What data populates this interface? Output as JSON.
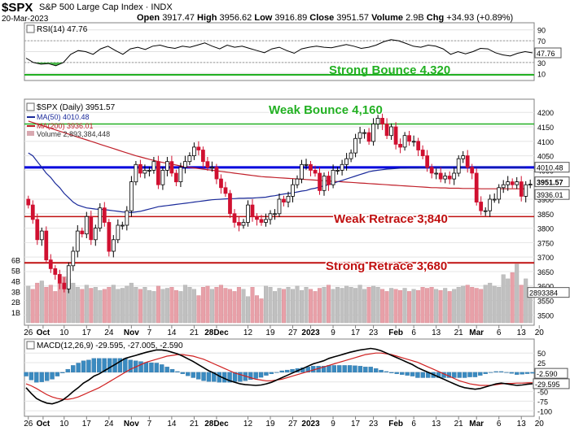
{
  "header": {
    "symbol": "$SPX",
    "name": "S&P 500 Large Cap Index",
    "exchange": "INDX",
    "date": "20-Mar-2023",
    "open_label": "Open",
    "open": "3917.47",
    "high_label": "High",
    "high": "3956.62",
    "low_label": "Low",
    "low": "3916.89",
    "close_label": "Close",
    "close": "3951.57",
    "volume_label": "Volume",
    "volume": "2.9B",
    "chg_label": "Chg",
    "chg": "+34.93 (+0.89%)"
  },
  "colors": {
    "up": "#000000",
    "down": "#d01030",
    "ma50": "#1a2a9a",
    "ma200": "#c0202a",
    "rsi": "#000000",
    "rsi_fill": "#22aa22",
    "vol_up": "#c0c0c0",
    "vol_down": "#e8a0a8",
    "hist": "#3a8ac0",
    "macd": "#000000",
    "signal": "#d02020",
    "green_line": "#22b022",
    "blue_line": "#0000dd",
    "red_line": "#c01010"
  },
  "chart_data": [
    {
      "type": "line",
      "panel": "RSI",
      "legend": "RSI(14) 47.76",
      "ylim": [
        0,
        100
      ],
      "ticks": [
        "90",
        "70",
        "50",
        "30",
        "10"
      ],
      "tick_values": [
        90,
        70,
        50,
        30,
        10
      ],
      "last_value": "47.76",
      "annotation": "Strong Bounce 4,320",
      "values": [
        38,
        30,
        27,
        28,
        24,
        30,
        45,
        52,
        50,
        45,
        55,
        60,
        52,
        45,
        55,
        58,
        54,
        60,
        62,
        58,
        56,
        60,
        58,
        62,
        66,
        60,
        55,
        62,
        58,
        60,
        56,
        52,
        48,
        55,
        58,
        52,
        47,
        55,
        58,
        60,
        58,
        57,
        60,
        63,
        60,
        56,
        58,
        62,
        68,
        72,
        70,
        65,
        60,
        58,
        62,
        60,
        55,
        45,
        50,
        46,
        50,
        56,
        55,
        48,
        44,
        42,
        47,
        50,
        47.76
      ]
    },
    {
      "type": "candlestick",
      "panel": "Price",
      "legend": [
        "$SPX (Daily) 3951.57",
        "MA(50) 4010.48",
        "MA(200) 3936.01",
        "Volume 2,893,384,448"
      ],
      "ylim": [
        3470,
        4240
      ],
      "ticks": [
        "4200",
        "4150",
        "4100",
        "4050",
        "4000",
        "3900",
        "3850",
        "3800",
        "3750",
        "3700",
        "3650",
        "3600",
        "3550",
        "3500"
      ],
      "tick_values": [
        4200,
        4150,
        4100,
        4050,
        4000,
        3900,
        3850,
        3800,
        3750,
        3700,
        3650,
        3600,
        3550,
        3500
      ],
      "last_labels": [
        "4010.48",
        "3951.57",
        "3936.01",
        "2893384"
      ],
      "vol_axis_labels": [
        "6B",
        "5B",
        "4B",
        "3B",
        "2B",
        "1B"
      ],
      "vol_axis_values": [
        6,
        5,
        4,
        3,
        2,
        1
      ],
      "x_labels": [
        "26",
        "Oct",
        "10",
        "17",
        "24",
        "Nov",
        "7",
        "14",
        "21",
        "28Dec",
        "12",
        "19",
        "27",
        "2023",
        "9",
        "17",
        "23",
        "Feb",
        "6",
        "13",
        "21",
        "Mar",
        "6",
        "13",
        "20"
      ],
      "x_label_idx": [
        0,
        3.3,
        8,
        13,
        18,
        23,
        27,
        32,
        37,
        42,
        49,
        54,
        59,
        63,
        68,
        73,
        77,
        82,
        86,
        91,
        96,
        100,
        105,
        110,
        114
      ],
      "lines": [
        {
          "label": "Strong Bounce 4,320",
          "value": 4320,
          "panel": "RSI"
        },
        {
          "label": "Weak Bounce 4,160",
          "value": 4160
        },
        {
          "label": "",
          "value": 4010
        },
        {
          "label": "Weak Retrace 3,840",
          "value": 3840
        },
        {
          "label": "Strong Retrace 3,680",
          "value": 3680
        }
      ],
      "close": [
        3880,
        3830,
        3760,
        3790,
        3690,
        3660,
        3640,
        3610,
        3590,
        3670,
        3720,
        3790,
        3780,
        3840,
        3760,
        3800,
        3870,
        3820,
        3720,
        3760,
        3810,
        3810,
        3860,
        3960,
        4020,
        3990,
        4000,
        4000,
        4030,
        3950,
        4000,
        4030,
        3990,
        3960,
        4010,
        4030,
        4050,
        4080,
        4070,
        4030,
        4010,
        4010,
        3970,
        3940,
        3920,
        3850,
        3820,
        3810,
        3820,
        3880,
        3840,
        3830,
        3820,
        3830,
        3850,
        3850,
        3900,
        3890,
        3910,
        3950,
        3970,
        4020,
        4020,
        4000,
        3990,
        3930,
        3980,
        3950,
        4000,
        4000,
        4020,
        4040,
        4060,
        4110,
        4130,
        4130,
        4100,
        4160,
        4180,
        4160,
        4120,
        4150,
        4090,
        4080,
        4120,
        4100,
        4100,
        4070,
        4050,
        4010,
        3990,
        3990,
        3970,
        3980,
        3970,
        3990,
        4040,
        4050,
        4010,
        3990,
        3890,
        3860,
        3860,
        3900,
        3900,
        3940,
        3950,
        3960,
        3950,
        3960,
        3910,
        3950,
        3951.57
      ],
      "ma50": [
        4060,
        4050,
        4030,
        4010,
        3990,
        3975,
        3955,
        3940,
        3920,
        3905,
        3890,
        3880,
        3875,
        3870,
        3868,
        3866,
        3865,
        3864,
        3862,
        3860,
        3858,
        3856,
        3855,
        3854,
        3856,
        3858,
        3862,
        3866,
        3870,
        3874,
        3876,
        3878,
        3880,
        3882,
        3884,
        3886,
        3888,
        3890,
        3892,
        3894,
        3896,
        3898,
        3899,
        3900,
        3901,
        3902,
        3902,
        3903,
        3903,
        3904,
        3904,
        3905,
        3906,
        3907,
        3910,
        3912,
        3915,
        3918,
        3920,
        3922,
        3925,
        3928,
        3930,
        3935,
        3938,
        3942,
        3946,
        3950,
        3955,
        3960,
        3965,
        3970,
        3975,
        3980,
        3985,
        3990,
        3995,
        3998,
        4000,
        4002,
        4004,
        4005,
        4006,
        4007,
        4007,
        4008,
        4008,
        4008,
        4009,
        4009,
        4009,
        4009,
        4010,
        4010,
        4010,
        4010,
        4010,
        4010,
        4010,
        4010,
        4010,
        4010,
        4010,
        4010,
        4010,
        4010,
        4010,
        4010,
        4010,
        4010,
        4010,
        4010.48
      ],
      "ma200": [
        4170,
        4165,
        4160,
        4155,
        4150,
        4145,
        4140,
        4135,
        4130,
        4125,
        4120,
        4115,
        4110,
        4105,
        4100,
        4095,
        4090,
        4085,
        4080,
        4075,
        4070,
        4065,
        4060,
        4055,
        4050,
        4046,
        4042,
        4038,
        4034,
        4030,
        4027,
        4024,
        4021,
        4018,
        4015,
        4012,
        4010,
        4008,
        4006,
        4004,
        4002,
        4000,
        3998,
        3996,
        3994,
        3992,
        3990,
        3988,
        3986,
        3984,
        3982,
        3980,
        3978,
        3977,
        3976,
        3975,
        3974,
        3973,
        3972,
        3971,
        3970,
        3969,
        3968,
        3967,
        3966,
        3965,
        3964,
        3963,
        3962,
        3961,
        3960,
        3959,
        3958,
        3957,
        3956,
        3955,
        3954,
        3953,
        3952,
        3951,
        3950,
        3949,
        3948,
        3947,
        3946,
        3945,
        3944,
        3943,
        3942,
        3941,
        3940,
        3940,
        3939,
        3939,
        3938,
        3938,
        3938,
        3937,
        3937,
        3937,
        3937,
        3936,
        3936,
        3936,
        3936,
        3936,
        3936,
        3936,
        3936,
        3936,
        3936,
        3936.01
      ],
      "volume": [
        3.5,
        3.2,
        3.8,
        4.0,
        3.4,
        3.6,
        3.0,
        3.8,
        4.4,
        4.2,
        3.8,
        3.4,
        3.2,
        3.6,
        3.3,
        3.4,
        3.1,
        3.2,
        3.4,
        3.6,
        3.2,
        3.3,
        3.5,
        3.8,
        3.4,
        3.2,
        3.4,
        3.1,
        3.0,
        3.5,
        3.2,
        3.3,
        3.4,
        3.1,
        3.0,
        3.6,
        3.4,
        3.2,
        2.6,
        3.4,
        3.5,
        3.2,
        3.4,
        3.6,
        3.3,
        3.2,
        3.0,
        3.4,
        3.2,
        2.5,
        3.4,
        2.6,
        2.3,
        3.5,
        3.4,
        3.0,
        3.3,
        3.2,
        3.4,
        3.2,
        3.5,
        3.1,
        3.4,
        3.2,
        3.0,
        3.3,
        3.4,
        3.6,
        3.2,
        3.4,
        3.3,
        3.5,
        3.4,
        3.3,
        3.6,
        3.2,
        3.4,
        3.5,
        3.4,
        3.2,
        3.0,
        3.3,
        3.2,
        3.1,
        3.3,
        3.0,
        3.2,
        3.1,
        3.4,
        3.3,
        3.4,
        3.2,
        3.1,
        3.3,
        3.0,
        3.2,
        3.4,
        3.5,
        3.6,
        3.4,
        3.3,
        3.2,
        3.6,
        3.8,
        3.5,
        3.4,
        4.6,
        4.2,
        4.8,
        5.6,
        3.6,
        4.2,
        2.9
      ]
    },
    {
      "type": "line",
      "panel": "MACD",
      "legend": "MACD(12,26,9) -29.595, -27.005, -2.590",
      "ylim": [
        -110,
        80
      ],
      "ticks": [
        "50",
        "25",
        "0",
        "-25",
        "-50",
        "-75",
        "-100"
      ],
      "tick_values": [
        50,
        25,
        0,
        -25,
        -50,
        -75,
        -100
      ],
      "last_labels": [
        "-2.590",
        "-29.595"
      ],
      "macd": [
        -40,
        -55,
        -68,
        -75,
        -80,
        -82,
        -78,
        -72,
        -62,
        -50,
        -40,
        -28,
        -20,
        -10,
        -4,
        4,
        12,
        20,
        28,
        36,
        40,
        44,
        48,
        52,
        55,
        58,
        58,
        56,
        52,
        48,
        42,
        35,
        28,
        20,
        12,
        4,
        -2,
        -10,
        -16,
        -22,
        -26,
        -30,
        -32,
        -33,
        -34,
        -33,
        -30,
        -26,
        -20,
        -14,
        -8,
        -2,
        4,
        10,
        16,
        22,
        26,
        30,
        36,
        40,
        44,
        48,
        52,
        55,
        58,
        60,
        62,
        60,
        56,
        50,
        44,
        38,
        32,
        26,
        20,
        12,
        6,
        0,
        -6,
        -12,
        -18,
        -24,
        -30,
        -36,
        -40,
        -42,
        -44,
        -42,
        -38,
        -34,
        -30,
        -28,
        -30,
        -32,
        -34,
        -33,
        -31,
        -29.595
      ],
      "signal": [
        -30,
        -35,
        -42,
        -50,
        -58,
        -64,
        -68,
        -70,
        -70,
        -68,
        -64,
        -58,
        -52,
        -46,
        -40,
        -32,
        -24,
        -16,
        -8,
        0,
        8,
        14,
        20,
        26,
        30,
        34,
        38,
        42,
        44,
        46,
        46,
        44,
        42,
        38,
        34,
        28,
        22,
        16,
        10,
        4,
        -2,
        -6,
        -10,
        -14,
        -18,
        -20,
        -22,
        -22,
        -20,
        -18,
        -14,
        -10,
        -6,
        -2,
        2,
        6,
        10,
        14,
        18,
        22,
        26,
        30,
        34,
        38,
        42,
        46,
        48,
        50,
        50,
        48,
        46,
        42,
        38,
        34,
        30,
        26,
        20,
        14,
        8,
        2,
        -4,
        -10,
        -16,
        -22,
        -26,
        -30,
        -32,
        -34,
        -34,
        -34,
        -32,
        -30,
        -29,
        -29,
        -28,
        -28,
        -27.5,
        -27.005
      ]
    }
  ]
}
